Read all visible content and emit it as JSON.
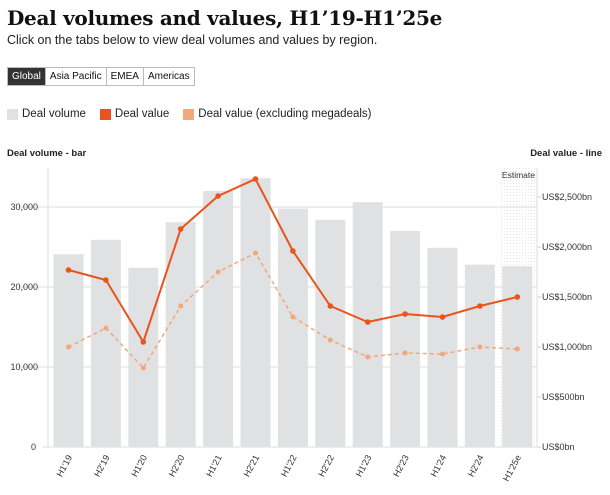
{
  "title": "Deal volumes and values, H1’19-H1’25e",
  "subtitle": "Click on the tabs below to view deal volumes and values by region.",
  "tabs": [
    {
      "label": "Global",
      "active": true
    },
    {
      "label": "Asia Pacific",
      "active": false
    },
    {
      "label": "EMEA",
      "active": false
    },
    {
      "label": "Americas",
      "active": false
    }
  ],
  "legend": [
    {
      "label": "Deal volume",
      "color": "#dfe1e3"
    },
    {
      "label": "Deal value",
      "color": "#e8541b"
    },
    {
      "label": "Deal value (excluding megadeals)",
      "color": "#f4a77a"
    }
  ],
  "chart_data": {
    "type": "bar+line",
    "categories": [
      "H1'19",
      "H2'19",
      "H1'20",
      "H2'20",
      "H1'21",
      "H2'21",
      "H1'22",
      "H2'22",
      "H1'23",
      "H2'23",
      "H1'24",
      "H2'24",
      "H1'25e"
    ],
    "left_axis": {
      "title": "Deal volume - bar",
      "range": [
        0,
        35000
      ],
      "ticks": [
        0,
        10000,
        20000,
        30000
      ],
      "tick_labels": [
        "0",
        "10,000",
        "20,000",
        "30,000"
      ]
    },
    "right_axis": {
      "title": "Deal value - line",
      "range": [
        0,
        2800
      ],
      "ticks": [
        0,
        500,
        1000,
        1500,
        2000,
        2500
      ],
      "tick_labels": [
        "US$0bn",
        "US$500bn",
        "US$1,000bn",
        "US$1,500bn",
        "US$2,000bn",
        "US$2,500bn"
      ]
    },
    "annotation": "Estimate",
    "grid": true,
    "series": [
      {
        "name": "Deal volume",
        "type": "bar",
        "axis": "left",
        "color": "#dfe1e3",
        "values": [
          24100,
          25900,
          22400,
          28100,
          32000,
          33600,
          29800,
          28400,
          30600,
          27000,
          24900,
          22800,
          22600
        ]
      },
      {
        "name": "Deal value",
        "type": "line",
        "axis": "right",
        "color": "#e8541b",
        "values": [
          1770,
          1670,
          1050,
          2180,
          2510,
          2680,
          1960,
          1410,
          1250,
          1330,
          1300,
          1410,
          1500
        ]
      },
      {
        "name": "Deal value (excluding megadeals)",
        "type": "line",
        "dashed": true,
        "axis": "right",
        "color": "#f4a77a",
        "values": [
          1000,
          1190,
          790,
          1410,
          1750,
          1940,
          1300,
          1070,
          900,
          940,
          930,
          1000,
          980
        ]
      }
    ]
  }
}
